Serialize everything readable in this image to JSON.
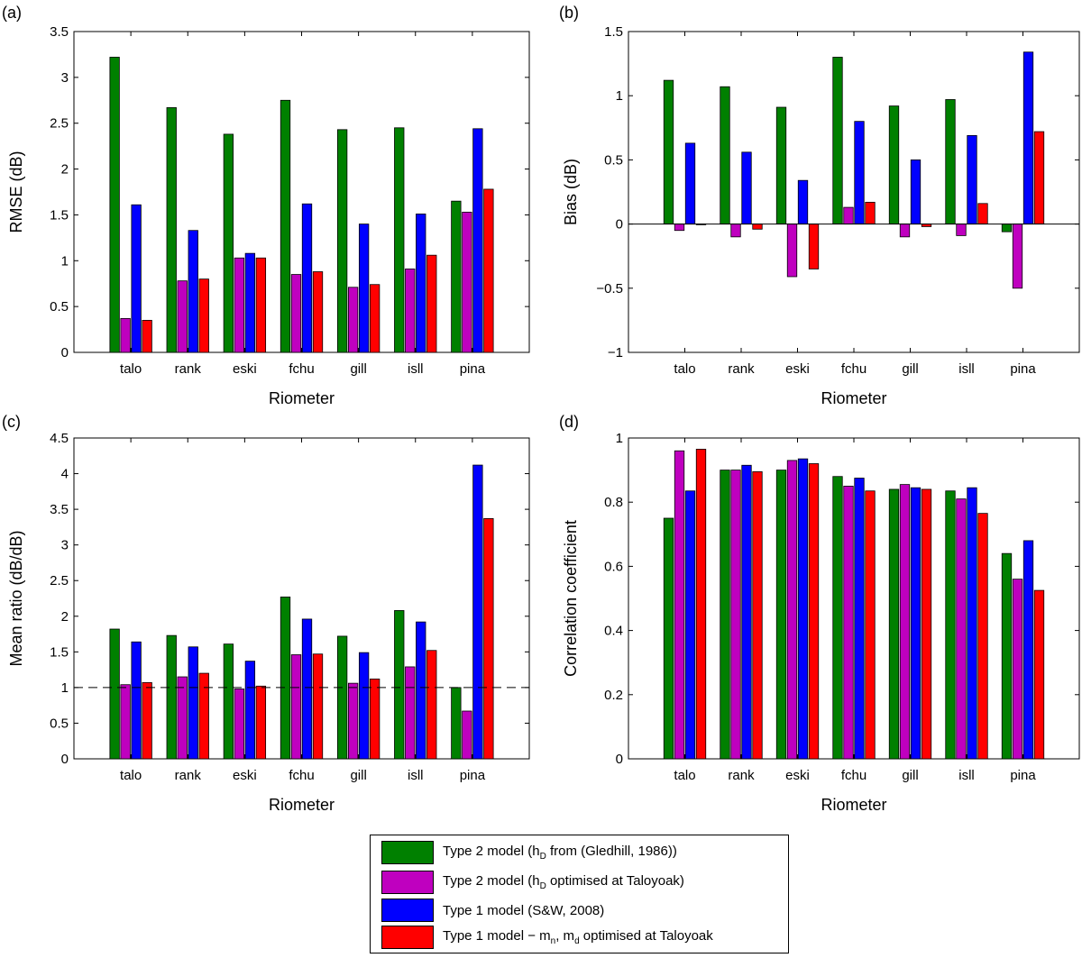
{
  "chart_data": [
    {
      "type": "bar",
      "panel": "(a)",
      "ylabel": "RMSE (dB)",
      "xlabel": "Riometer",
      "categories": [
        "talo",
        "rank",
        "eski",
        "fchu",
        "gill",
        "isll",
        "pina"
      ],
      "ylim": [
        0,
        3.5
      ],
      "yticks": [
        "0",
        "0.5",
        "1",
        "1.5",
        "2",
        "2.5",
        "3",
        "3.5"
      ],
      "reference_line": null,
      "series": [
        {
          "name": "Type 2 model (Gledhill)",
          "values": [
            3.22,
            2.67,
            2.38,
            2.75,
            2.43,
            2.45,
            1.65
          ]
        },
        {
          "name": "Type 2 model (optimised)",
          "values": [
            0.37,
            0.78,
            1.03,
            0.85,
            0.71,
            0.91,
            1.53
          ]
        },
        {
          "name": "Type 1 model (S&W)",
          "values": [
            1.61,
            1.33,
            1.08,
            1.62,
            1.4,
            1.51,
            2.44
          ]
        },
        {
          "name": "Type 1 model (optimised)",
          "values": [
            0.35,
            0.8,
            1.03,
            0.88,
            0.74,
            1.06,
            1.78
          ]
        }
      ]
    },
    {
      "type": "bar",
      "panel": "(b)",
      "ylabel": "Bias (dB)",
      "xlabel": "Riometer",
      "categories": [
        "talo",
        "rank",
        "eski",
        "fchu",
        "gill",
        "isll",
        "pina"
      ],
      "ylim": [
        -1,
        1.5
      ],
      "yticks": [
        "−1",
        "−0.5",
        "0",
        "0.5",
        "1",
        "1.5"
      ],
      "reference_line": {
        "value": 0,
        "style": "solid"
      },
      "series": [
        {
          "name": "Type 2 model (Gledhill)",
          "values": [
            1.12,
            1.07,
            0.91,
            1.3,
            0.92,
            0.97,
            -0.06
          ]
        },
        {
          "name": "Type 2 model (optimised)",
          "values": [
            -0.05,
            -0.1,
            -0.41,
            0.13,
            -0.1,
            -0.09,
            -0.5
          ]
        },
        {
          "name": "Type 1 model (S&W)",
          "values": [
            0.63,
            0.56,
            0.34,
            0.8,
            0.5,
            0.69,
            1.34
          ]
        },
        {
          "name": "Type 1 model (optimised)",
          "values": [
            -0.001,
            -0.04,
            -0.35,
            0.17,
            -0.02,
            0.16,
            0.72
          ]
        }
      ]
    },
    {
      "type": "bar",
      "panel": "(c)",
      "ylabel": "Mean ratio (dB/dB)",
      "xlabel": "Riometer",
      "categories": [
        "talo",
        "rank",
        "eski",
        "fchu",
        "gill",
        "isll",
        "pina"
      ],
      "ylim": [
        0,
        4.5
      ],
      "yticks": [
        "0",
        "0.5",
        "1",
        "1.5",
        "2",
        "2.5",
        "3",
        "3.5",
        "4",
        "4.5"
      ],
      "reference_line": {
        "value": 1,
        "style": "dashed"
      },
      "series": [
        {
          "name": "Type 2 model (Gledhill)",
          "values": [
            1.82,
            1.73,
            1.61,
            2.27,
            1.72,
            2.08,
            1.0
          ]
        },
        {
          "name": "Type 2 model (optimised)",
          "values": [
            1.04,
            1.15,
            0.98,
            1.46,
            1.06,
            1.29,
            0.67
          ]
        },
        {
          "name": "Type 1 model (S&W)",
          "values": [
            1.64,
            1.57,
            1.37,
            1.96,
            1.49,
            1.92,
            4.12
          ]
        },
        {
          "name": "Type 1 model (optimised)",
          "values": [
            1.07,
            1.2,
            1.02,
            1.47,
            1.12,
            1.52,
            3.37
          ]
        }
      ]
    },
    {
      "type": "bar",
      "panel": "(d)",
      "ylabel": "Correlation coefficient",
      "xlabel": "Riometer",
      "categories": [
        "talo",
        "rank",
        "eski",
        "fchu",
        "gill",
        "isll",
        "pina"
      ],
      "ylim": [
        0,
        1
      ],
      "yticks": [
        "0",
        "0.2",
        "0.4",
        "0.6",
        "0.8",
        "1"
      ],
      "reference_line": null,
      "series": [
        {
          "name": "Type 2 model (Gledhill)",
          "values": [
            0.75,
            0.9,
            0.9,
            0.88,
            0.84,
            0.835,
            0.64
          ]
        },
        {
          "name": "Type 2 model (optimised)",
          "values": [
            0.96,
            0.9,
            0.93,
            0.85,
            0.855,
            0.81,
            0.56
          ]
        },
        {
          "name": "Type 1 model (S&W)",
          "values": [
            0.835,
            0.915,
            0.935,
            0.875,
            0.845,
            0.845,
            0.68
          ]
        },
        {
          "name": "Type 1 model (optimised)",
          "values": [
            0.965,
            0.895,
            0.92,
            0.835,
            0.84,
            0.765,
            0.525
          ]
        }
      ]
    }
  ],
  "colors": {
    "series": [
      "#008000",
      "#bf00bf",
      "#0000ff",
      "#ff0000"
    ]
  },
  "legend": {
    "items": [
      {
        "pre": "Type 2 model (h",
        "sub": "D",
        "post": " from (Gledhill, 1986))"
      },
      {
        "pre": "Type 2 model (h",
        "sub": "D",
        "post": " optimised at Taloyoak)"
      },
      {
        "pre": "Type 1 model (S&W, 2008)",
        "sub": "",
        "post": ""
      },
      {
        "pre": "Type 1 model − m",
        "sub": "n",
        "post": ", m",
        "sub2": "d",
        "post2": " optimised at Taloyoak"
      }
    ]
  }
}
